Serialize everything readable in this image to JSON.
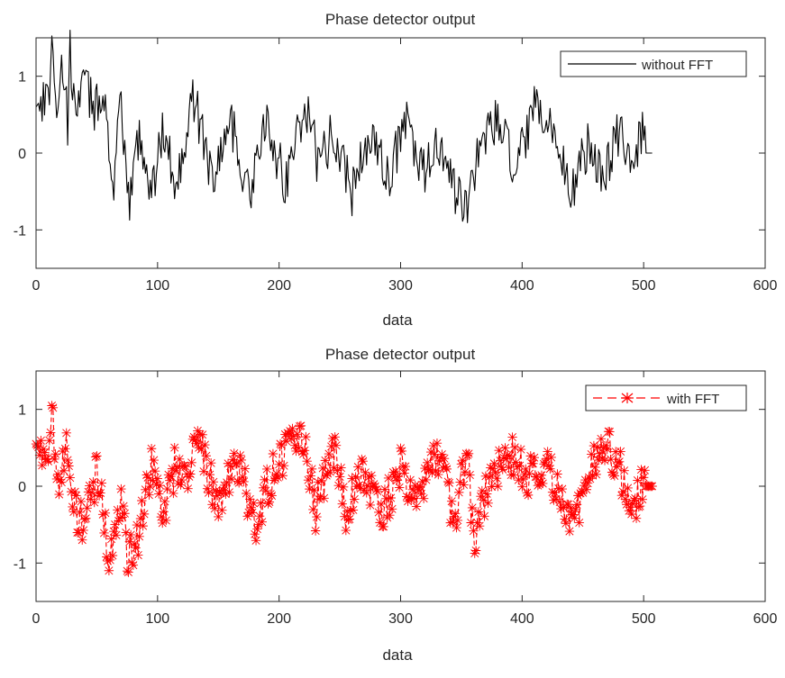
{
  "chart_data": [
    {
      "type": "line",
      "title": "Phase detector output",
      "xlabel": "data",
      "ylabel": "",
      "xlim": [
        0,
        600
      ],
      "ylim": [
        -1.5,
        1.5
      ],
      "xticks": [
        "0",
        "100",
        "200",
        "300",
        "400",
        "500",
        "600"
      ],
      "yticks": [
        "1",
        "0",
        "-1"
      ],
      "grid": false,
      "legend_position": "top-right",
      "series": [
        {
          "name": "without FFT",
          "color": "#000000",
          "line_style": "solid",
          "marker": "none",
          "n_points": 508,
          "samples": [
            [
              0,
              0.6
            ],
            [
              5,
              0.72
            ],
            [
              10,
              0.75
            ],
            [
              13,
              1.3
            ],
            [
              18,
              0.55
            ],
            [
              22,
              1.2
            ],
            [
              26,
              0.35
            ],
            [
              28,
              1.3
            ],
            [
              33,
              0.45
            ],
            [
              40,
              0.95
            ],
            [
              48,
              0.55
            ],
            [
              55,
              0.85
            ],
            [
              60,
              0.2
            ],
            [
              63,
              -0.55
            ],
            [
              70,
              0.6
            ],
            [
              76,
              -0.7
            ],
            [
              85,
              0.3
            ],
            [
              95,
              -0.55
            ],
            [
              105,
              0.35
            ],
            [
              115,
              -0.45
            ],
            [
              128,
              0.7
            ],
            [
              135,
              0.4
            ],
            [
              145,
              -0.35
            ],
            [
              160,
              0.45
            ],
            [
              175,
              -0.55
            ],
            [
              190,
              0.4
            ],
            [
              205,
              -0.4
            ],
            [
              215,
              0.3
            ],
            [
              225,
              0.6
            ],
            [
              232,
              -0.2
            ],
            [
              245,
              0.3
            ],
            [
              260,
              -0.5
            ],
            [
              275,
              0.25
            ],
            [
              290,
              -0.35
            ],
            [
              305,
              0.45
            ],
            [
              318,
              -0.3
            ],
            [
              332,
              0.1
            ],
            [
              345,
              -0.55
            ],
            [
              355,
              -0.7
            ],
            [
              365,
              0.15
            ],
            [
              380,
              0.4
            ],
            [
              395,
              -0.25
            ],
            [
              410,
              0.55
            ],
            [
              425,
              0.3
            ],
            [
              440,
              -0.5
            ],
            [
              455,
              0.15
            ],
            [
              468,
              -0.3
            ],
            [
              480,
              0.3
            ],
            [
              490,
              -0.25
            ],
            [
              500,
              0.4
            ],
            [
              503,
              0.0
            ],
            [
              508,
              0.0
            ]
          ]
        }
      ]
    },
    {
      "type": "line",
      "title": "Phase detector output",
      "xlabel": "data",
      "ylabel": "",
      "xlim": [
        0,
        600
      ],
      "ylim": [
        -1.5,
        1.5
      ],
      "xticks": [
        "0",
        "100",
        "200",
        "300",
        "400",
        "500",
        "600"
      ],
      "yticks": [
        "1",
        "0",
        "-1"
      ],
      "grid": false,
      "legend_position": "top-right",
      "series": [
        {
          "name": "with FFT",
          "color": "#ff0000",
          "line_style": "dashed",
          "marker": "x-star",
          "n_points": 508,
          "samples": [
            [
              0,
              0.55
            ],
            [
              5,
              0.45
            ],
            [
              10,
              0.5
            ],
            [
              13,
              0.95
            ],
            [
              18,
              0.1
            ],
            [
              25,
              0.6
            ],
            [
              30,
              -0.3
            ],
            [
              40,
              -0.5
            ],
            [
              50,
              0.2
            ],
            [
              60,
              -0.85
            ],
            [
              70,
              -0.3
            ],
            [
              76,
              -0.95
            ],
            [
              85,
              -0.6
            ],
            [
              95,
              0.3
            ],
            [
              105,
              -0.35
            ],
            [
              115,
              0.3
            ],
            [
              125,
              0.15
            ],
            [
              130,
              0.7
            ],
            [
              140,
              0.3
            ],
            [
              150,
              -0.3
            ],
            [
              165,
              0.35
            ],
            [
              180,
              -0.5
            ],
            [
              195,
              0.2
            ],
            [
              210,
              0.5
            ],
            [
              220,
              0.6
            ],
            [
              230,
              -0.3
            ],
            [
              245,
              0.45
            ],
            [
              255,
              -0.3
            ],
            [
              270,
              0.2
            ],
            [
              285,
              -0.35
            ],
            [
              300,
              0.25
            ],
            [
              315,
              -0.2
            ],
            [
              330,
              0.45
            ],
            [
              345,
              -0.45
            ],
            [
              355,
              0.5
            ],
            [
              360,
              -0.7
            ],
            [
              375,
              0.2
            ],
            [
              390,
              0.4
            ],
            [
              405,
              0.1
            ],
            [
              420,
              0.35
            ],
            [
              430,
              -0.1
            ],
            [
              445,
              -0.45
            ],
            [
              455,
              0.25
            ],
            [
              470,
              0.6
            ],
            [
              480,
              0.25
            ],
            [
              490,
              -0.3
            ],
            [
              500,
              0.0
            ],
            [
              508,
              0.0
            ]
          ]
        }
      ]
    }
  ]
}
